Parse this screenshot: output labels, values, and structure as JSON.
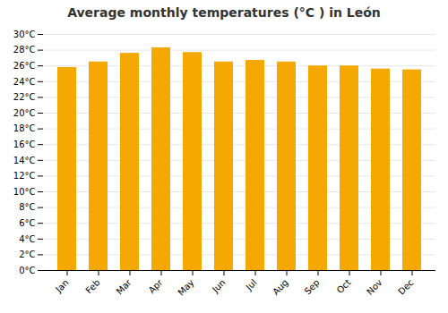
{
  "chart_data": {
    "type": "bar",
    "title": "Average monthly temperatures (°C ) in León",
    "categories": [
      "Jan",
      "Feb",
      "Mar",
      "Apr",
      "May",
      "Jun",
      "Jul",
      "Aug",
      "Sep",
      "Oct",
      "Nov",
      "Dec"
    ],
    "values": [
      25.8,
      26.5,
      27.6,
      28.3,
      27.7,
      26.5,
      26.7,
      26.5,
      26.0,
      26.0,
      25.6,
      25.5
    ],
    "color": "#F5A800",
    "ylim": [
      0,
      30
    ],
    "yticks": [
      {
        "value": 0,
        "label": "0°C"
      },
      {
        "value": 2,
        "label": "2°C"
      },
      {
        "value": 4,
        "label": "4°C"
      },
      {
        "value": 6,
        "label": "6°C"
      },
      {
        "value": 8,
        "label": "8°C"
      },
      {
        "value": 10,
        "label": "10°C"
      },
      {
        "value": 12,
        "label": "12°C"
      },
      {
        "value": 14,
        "label": "14°C"
      },
      {
        "value": 16,
        "label": "16°C"
      },
      {
        "value": 18,
        "label": "18°C"
      },
      {
        "value": 20,
        "label": "20°C"
      },
      {
        "value": 22,
        "label": "22°C"
      },
      {
        "value": 24,
        "label": "24°C"
      },
      {
        "value": 26,
        "label": "26°C"
      },
      {
        "value": 28,
        "label": "28°C"
      },
      {
        "value": 30,
        "label": "30°C"
      }
    ],
    "grid": true
  }
}
